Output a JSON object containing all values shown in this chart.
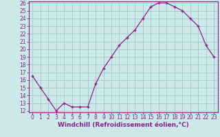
{
  "x": [
    0,
    1,
    2,
    3,
    4,
    5,
    6,
    7,
    8,
    9,
    10,
    11,
    12,
    13,
    14,
    15,
    16,
    17,
    18,
    19,
    20,
    21,
    22,
    23
  ],
  "y": [
    16.5,
    15.0,
    13.5,
    12.0,
    13.0,
    12.5,
    12.5,
    12.5,
    15.5,
    17.5,
    19.0,
    20.5,
    21.5,
    22.5,
    24.0,
    25.5,
    26.0,
    26.0,
    25.5,
    25.0,
    24.0,
    23.0,
    20.5,
    19.0
  ],
  "line_color": "#882288",
  "marker": "+",
  "bg_color": "#cce8e8",
  "grid_color": "#aacccc",
  "xlabel": "Windchill (Refroidissement éolien,°C)",
  "xlim": [
    -0.5,
    23.5
  ],
  "ylim": [
    12,
    26
  ],
  "yticks": [
    12,
    13,
    14,
    15,
    16,
    17,
    18,
    19,
    20,
    21,
    22,
    23,
    24,
    25,
    26
  ],
  "xticks": [
    0,
    1,
    2,
    3,
    4,
    5,
    6,
    7,
    8,
    9,
    10,
    11,
    12,
    13,
    14,
    15,
    16,
    17,
    18,
    19,
    20,
    21,
    22,
    23
  ],
  "tick_label_fontsize": 5.5,
  "xlabel_fontsize": 6.5
}
